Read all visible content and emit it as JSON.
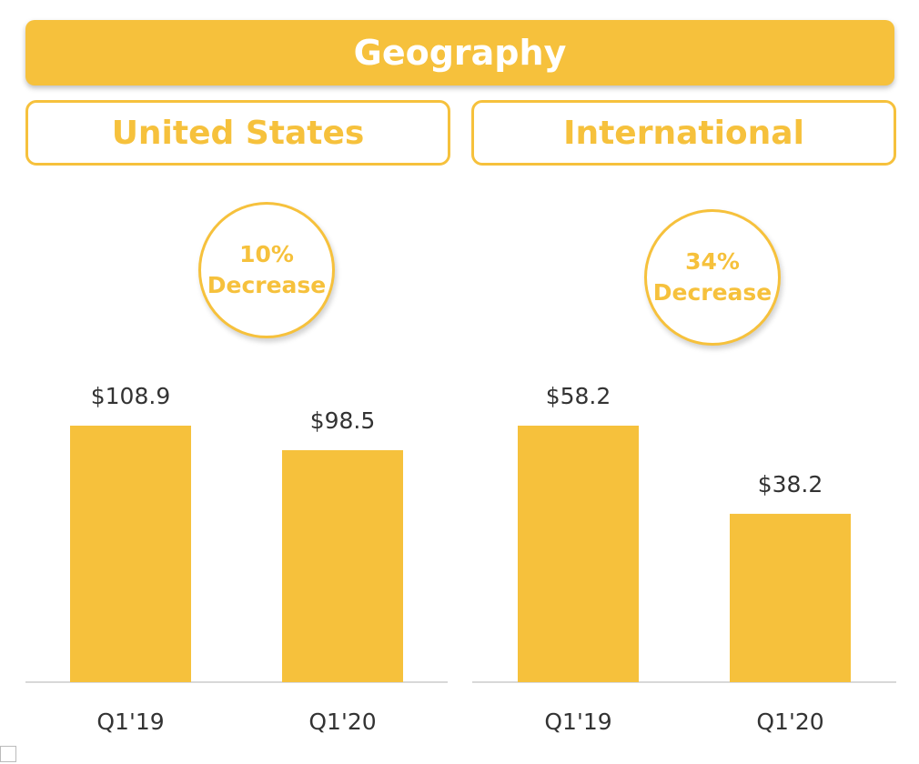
{
  "header": {
    "title": "Geography"
  },
  "colors": {
    "accent": "#f6c13c",
    "text": "#333333",
    "baseline": "#cccccc"
  },
  "chart_data": [
    {
      "type": "bar",
      "title": "United States",
      "badge": {
        "line1": "10%",
        "line2": "Decrease"
      },
      "categories": [
        "Q1'19",
        "Q1'20"
      ],
      "values": [
        108.9,
        98.5
      ],
      "value_labels": [
        "$108.9",
        "$98.5"
      ],
      "ylim": [
        0,
        108.9
      ],
      "grid": false
    },
    {
      "type": "bar",
      "title": "International",
      "badge": {
        "line1": "34%",
        "line2": "Decrease"
      },
      "categories": [
        "Q1'19",
        "Q1'20"
      ],
      "values": [
        58.2,
        38.2
      ],
      "value_labels": [
        "$58.2",
        "$38.2"
      ],
      "ylim": [
        0,
        58.2
      ],
      "grid": false
    }
  ]
}
